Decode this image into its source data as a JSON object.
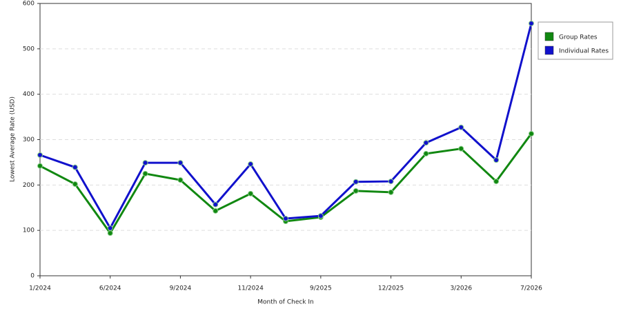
{
  "chart_data": {
    "type": "line",
    "x_label": "Month of Check In",
    "y_label": "Lowest Average Rate (USD)",
    "categories": [
      "1/2024",
      null,
      "6/2024",
      null,
      "9/2024",
      null,
      "11/2024",
      null,
      "9/2025",
      null,
      "12/2025",
      null,
      "3/2026",
      null,
      "7/2026"
    ],
    "series": [
      {
        "name": "Group Rates",
        "color": "#118811",
        "values": [
          242,
          202,
          94,
          225,
          211,
          143,
          181,
          120,
          129,
          187,
          184,
          269,
          280,
          208,
          313
        ]
      },
      {
        "name": "Individual Rates",
        "color": "#1111cc",
        "values": [
          266,
          239,
          105,
          249,
          249,
          157,
          246,
          126,
          132,
          207,
          208,
          293,
          327,
          255,
          556
        ]
      }
    ],
    "ylim": [
      0,
      600
    ],
    "yticks": [
      0,
      100,
      200,
      300,
      400,
      500,
      600
    ],
    "grid": true,
    "legend": "right"
  }
}
